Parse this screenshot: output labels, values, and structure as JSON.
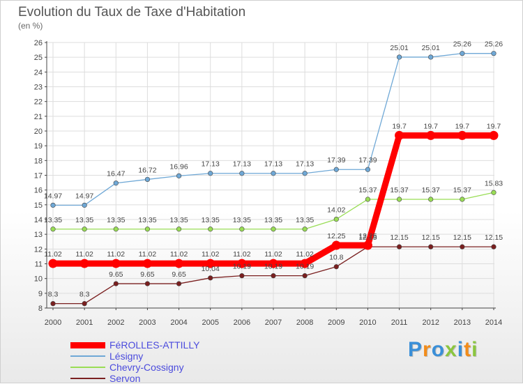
{
  "header": {
    "title": "Evolution du Taux de Taxe d'Habitation",
    "unit": "(en %)"
  },
  "chart_data": {
    "type": "line",
    "title": "Evolution du Taux de Taxe d'Habitation",
    "ylabel": "(en %)",
    "xlabel": "",
    "ylim": [
      8,
      26
    ],
    "x": [
      "2000",
      "2001",
      "2002",
      "2003",
      "2004",
      "2005",
      "2006",
      "2007",
      "2008",
      "2009",
      "2010",
      "2011",
      "2012",
      "2013",
      "2014"
    ],
    "yticks": [
      "8",
      "9",
      "10",
      "11",
      "12",
      "13",
      "14",
      "15",
      "16",
      "17",
      "18",
      "19",
      "20",
      "21",
      "22",
      "23",
      "24",
      "25",
      "26"
    ],
    "grid": true,
    "legend_position": "bottom-left",
    "series": [
      {
        "name": "FéROLLES-ATTILLY",
        "color": "#ff0000",
        "values": [
          11.02,
          11.02,
          11.02,
          11.02,
          11.02,
          11.02,
          11.02,
          11.02,
          11.02,
          12.25,
          12.25,
          19.7,
          19.7,
          19.7,
          19.7
        ],
        "labels": [
          "11.02",
          "11.02",
          "11.02",
          "11.02",
          "11.02",
          "11.02",
          "11.02",
          "11.02",
          "11.02",
          "12.25",
          "12.25",
          "19.7",
          "19.7",
          "19.7",
          "19.7"
        ]
      },
      {
        "name": "Lésigny",
        "color": "#6fa8d6",
        "values": [
          14.97,
          14.97,
          16.47,
          16.72,
          16.96,
          17.13,
          17.13,
          17.13,
          17.13,
          17.39,
          17.39,
          25.01,
          25.01,
          25.26,
          25.26
        ],
        "labels": [
          "14.97",
          "14.97",
          "16.47",
          "16.72",
          "16.96",
          "17.13",
          "17.13",
          "17.13",
          "17.13",
          "17.39",
          "17.39",
          "25.01",
          "25.01",
          "25.26",
          "25.26"
        ]
      },
      {
        "name": "Chevry-Cossigny",
        "color": "#99dd55",
        "values": [
          13.35,
          13.35,
          13.35,
          13.35,
          13.35,
          13.35,
          13.35,
          13.35,
          13.35,
          14.02,
          15.37,
          15.37,
          15.37,
          15.37,
          15.83
        ],
        "labels": [
          "13.35",
          "13.35",
          "13.35",
          "13.35",
          "13.35",
          "13.35",
          "13.35",
          "13.35",
          "13.35",
          "14.02",
          "15.37",
          "15.37",
          "15.37",
          "15.37",
          "15.83"
        ]
      },
      {
        "name": "Servon",
        "color": "#7a1f1f",
        "values": [
          8.3,
          8.3,
          9.65,
          9.65,
          9.65,
          10.04,
          10.19,
          10.19,
          10.19,
          10.8,
          12.15,
          12.15,
          12.15,
          12.15,
          12.15
        ],
        "labels": [
          "8.3",
          "8.3",
          "9.65",
          "9.65",
          "9.65",
          "10.04",
          "10.19",
          "10.19",
          "10.19",
          "10.8",
          "12.15",
          "12.15",
          "12.15",
          "12.15",
          "12.15"
        ]
      }
    ]
  },
  "legend": {
    "items": [
      {
        "label": "FéROLLES-ATTILLY",
        "color": "#ff0000"
      },
      {
        "label": "Lésigny",
        "color": "#6fa8d6"
      },
      {
        "label": "Chevry-Cossigny",
        "color": "#99dd55"
      },
      {
        "label": "Servon",
        "color": "#7a1f1f"
      }
    ]
  },
  "logo": {
    "letters": [
      "P",
      "r",
      "o",
      "x",
      "i",
      "t",
      "i"
    ],
    "colors": [
      "#3a8fd8",
      "#f28c1a",
      "#3a8fd8",
      "#8bc63f",
      "#3a8fd8",
      "#f28c1a",
      "#8bc63f"
    ]
  }
}
